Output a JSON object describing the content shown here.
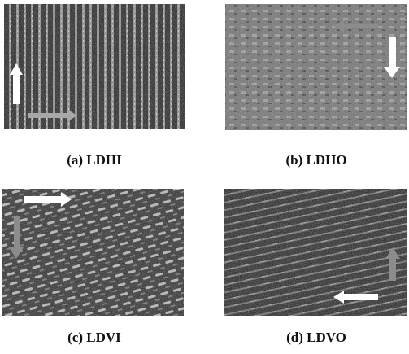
{
  "figure": {
    "panels": [
      {
        "caption": "(a) LDHI"
      },
      {
        "caption": "(b) LDHO"
      },
      {
        "caption": "(c) LDVI"
      },
      {
        "caption": "(d) LDVO"
      }
    ]
  }
}
